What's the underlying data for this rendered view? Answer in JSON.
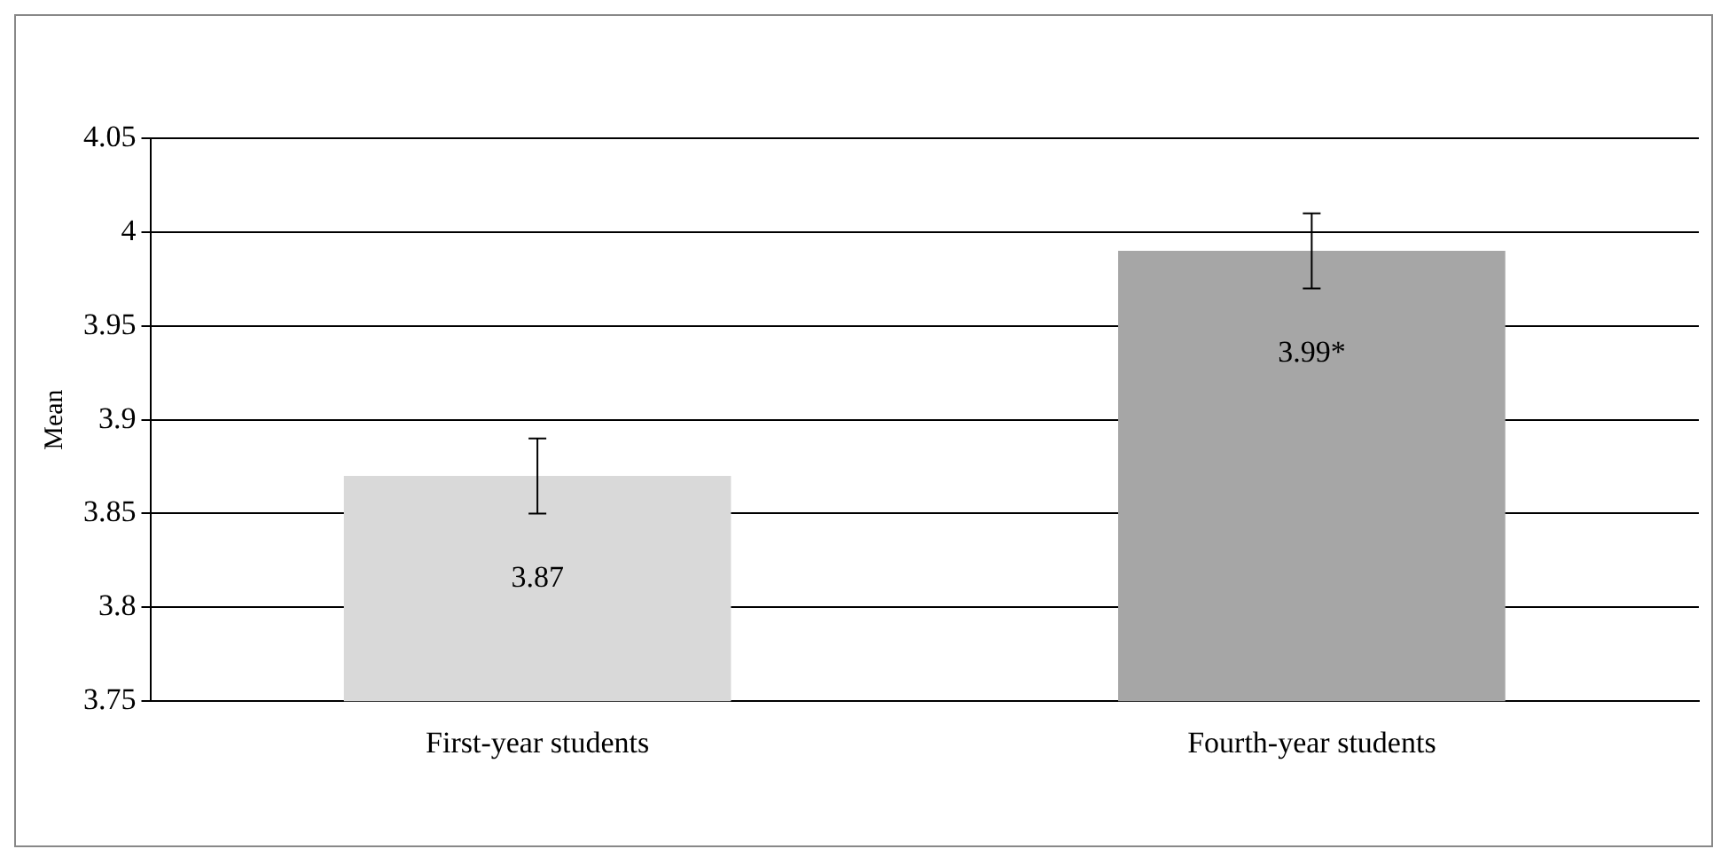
{
  "chart_data": {
    "type": "bar",
    "ylabel": "Mean",
    "categories": [
      "First-year students",
      "Fourth-year students"
    ],
    "values": [
      3.87,
      3.99
    ],
    "colors": [
      "#d9d9d9",
      "#a6a6a6"
    ],
    "errors": [
      0.02,
      0.02
    ],
    "value_labels": [
      "3.87",
      "3.99*"
    ],
    "ylim": [
      3.75,
      4.05
    ],
    "yticks": [
      3.75,
      3.8,
      3.85,
      3.9,
      3.95,
      4,
      4.05
    ],
    "grid": "y",
    "legend": false
  }
}
